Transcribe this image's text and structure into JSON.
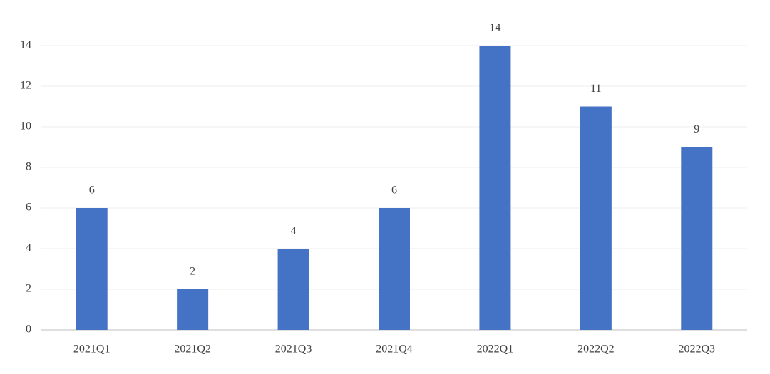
{
  "chart_data": {
    "type": "bar",
    "categories": [
      "2021Q1",
      "2021Q2",
      "2021Q3",
      "2021Q4",
      "2022Q1",
      "2022Q2",
      "2022Q3"
    ],
    "values": [
      6,
      2,
      4,
      6,
      14,
      11,
      9
    ],
    "color": "#4472c4",
    "ylim": [
      0,
      14
    ],
    "yticks": [
      0,
      2,
      4,
      6,
      8,
      10,
      12,
      14
    ],
    "grid": true
  }
}
